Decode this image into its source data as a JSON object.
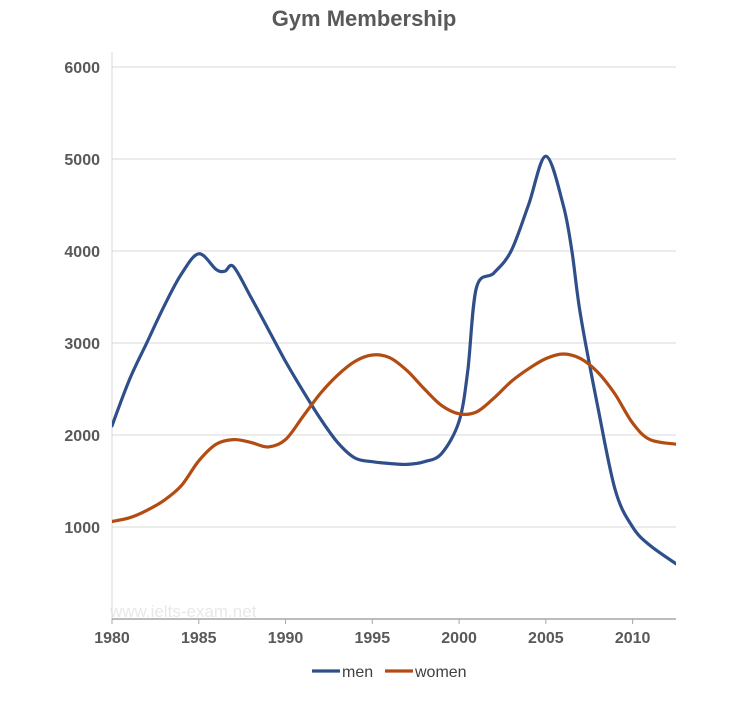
{
  "chart_data": {
    "type": "line",
    "title": "Gym Membership",
    "xlim": [
      1980,
      2012.5
    ],
    "ylim": [
      0,
      6000
    ],
    "x_ticks": [
      1980,
      1985,
      1990,
      1995,
      2000,
      2005,
      2010
    ],
    "y_ticks": [
      1000,
      2000,
      3000,
      4000,
      5000,
      6000
    ],
    "grid": true,
    "legend_position": "bottom",
    "watermark": "www.ielts-exam.net",
    "series": [
      {
        "name": "men",
        "color": "#2f4f8a",
        "x": [
          1980,
          1981,
          1982,
          1983,
          1984,
          1985,
          1986,
          1986.5,
          1987,
          1988,
          1989,
          1990,
          1991,
          1992,
          1993,
          1994,
          1995,
          1996,
          1997,
          1998,
          1999,
          2000,
          2000.5,
          2001,
          2002,
          2003,
          2004,
          2005,
          2006,
          2006.5,
          2007,
          2008,
          2009,
          2010,
          2011,
          2012.5
        ],
        "y": [
          2100,
          2600,
          3000,
          3400,
          3750,
          3970,
          3800,
          3780,
          3830,
          3500,
          3150,
          2800,
          2480,
          2180,
          1920,
          1750,
          1710,
          1690,
          1680,
          1710,
          1800,
          2150,
          2700,
          3600,
          3760,
          4000,
          4500,
          5030,
          4500,
          4000,
          3300,
          2300,
          1400,
          1000,
          800,
          600
        ]
      },
      {
        "name": "women",
        "color": "#b34c12",
        "x": [
          1980,
          1981,
          1982,
          1983,
          1984,
          1985,
          1986,
          1987,
          1988,
          1989,
          1990,
          1991,
          1992,
          1993,
          1994,
          1995,
          1996,
          1997,
          1998,
          1999,
          2000,
          2001,
          2002,
          2003,
          2004,
          2005,
          2006,
          2007,
          2008,
          2009,
          2010,
          2011,
          2012.5
        ],
        "y": [
          1060,
          1100,
          1180,
          1290,
          1450,
          1720,
          1900,
          1950,
          1920,
          1870,
          1950,
          2200,
          2450,
          2650,
          2800,
          2870,
          2840,
          2700,
          2500,
          2320,
          2230,
          2250,
          2400,
          2580,
          2720,
          2830,
          2880,
          2830,
          2680,
          2440,
          2130,
          1950,
          1900
        ]
      }
    ]
  }
}
